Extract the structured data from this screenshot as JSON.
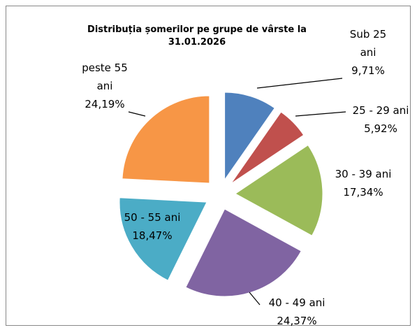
{
  "chart_data": {
    "type": "pie",
    "title": "Distribuția șomerilor pe grupe de vârste la 31.01.2026",
    "categories": [
      "Sub 25 ani",
      "25 - 29 ani",
      "30 - 39 ani",
      "40 - 49 ani",
      "50 - 55 ani",
      "peste 55 ani"
    ],
    "values": [
      9.71,
      5.92,
      17.34,
      24.37,
      18.47,
      24.19
    ],
    "value_labels": [
      "9,71%",
      "5,92%",
      "17,34%",
      "24,37%",
      "18,47%",
      "24,19%"
    ],
    "colors": [
      "#4f81bd",
      "#c0504d",
      "#9bbb59",
      "#8064a2",
      "#4bacc6",
      "#f79646"
    ]
  }
}
